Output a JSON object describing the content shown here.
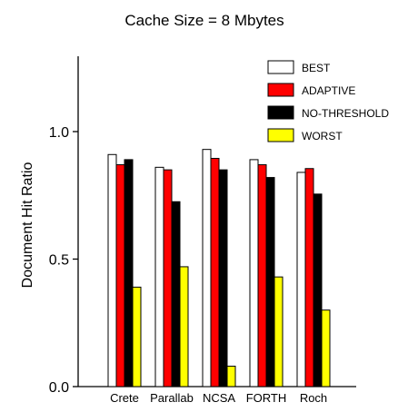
{
  "chart_data": {
    "type": "bar",
    "title": "Cache Size = 8 Mbytes",
    "xlabel": "",
    "ylabel": "Document Hit Ratio",
    "ylim": [
      0,
      1.3
    ],
    "yticks": [
      0.0,
      0.5,
      1.0
    ],
    "ytick_labels": [
      "0.0",
      "0.5",
      "1.0"
    ],
    "categories": [
      "Crete",
      "Parallab",
      "NCSA",
      "FORTH",
      "Roch"
    ],
    "series": [
      {
        "name": "BEST",
        "color": "#ffffff",
        "values": [
          0.91,
          0.86,
          0.93,
          0.89,
          0.84
        ]
      },
      {
        "name": "ADAPTIVE",
        "color": "#ff0000",
        "values": [
          0.87,
          0.85,
          0.895,
          0.87,
          0.855
        ]
      },
      {
        "name": "NO-THRESHOLD",
        "color": "#000000",
        "values": [
          0.89,
          0.725,
          0.85,
          0.82,
          0.755
        ]
      },
      {
        "name": "WORST",
        "color": "#ffff00",
        "values": [
          0.39,
          0.47,
          0.08,
          0.43,
          0.3
        ]
      }
    ],
    "legend_position": "top-right",
    "grid": false
  }
}
